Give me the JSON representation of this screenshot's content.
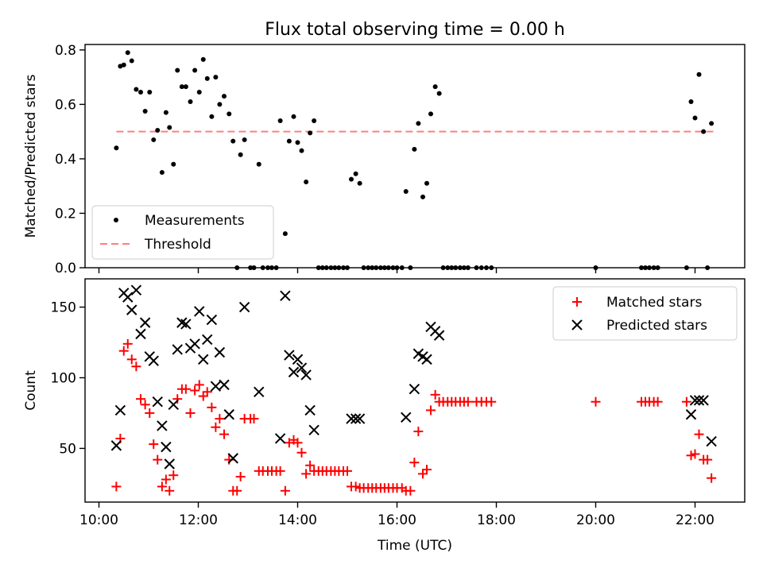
{
  "figure": {
    "title": "Flux total observing time = 0.00 h"
  },
  "colors": {
    "measurements": "#000000",
    "threshold": "#ff7f7f",
    "matched": "#ff0000",
    "predicted": "#000000"
  },
  "chart_data": [
    {
      "type": "scatter",
      "panel": "top",
      "ylabel": "Matched/Predicted stars",
      "xlabel": "",
      "x_unit": "hours UTC",
      "xlim": [
        9.72,
        23.0
      ],
      "ylim": [
        0.0,
        0.82
      ],
      "yticks": [
        0.0,
        0.2,
        0.4,
        0.6,
        0.8
      ],
      "ytick_labels": [
        "0.0",
        "0.2",
        "0.4",
        "0.6",
        "0.8"
      ],
      "legend": {
        "placement": "lower-left",
        "entries": [
          "Measurements",
          "Threshold"
        ]
      },
      "threshold": {
        "name": "Threshold",
        "y": 0.5,
        "x_range": [
          10.35,
          22.38
        ]
      },
      "series": [
        {
          "name": "Measurements",
          "points": [
            [
              10.35,
              0.44
            ],
            [
              10.43,
              0.74
            ],
            [
              10.5,
              0.745
            ],
            [
              10.58,
              0.79
            ],
            [
              10.66,
              0.76
            ],
            [
              10.75,
              0.655
            ],
            [
              10.84,
              0.645
            ],
            [
              10.93,
              0.575
            ],
            [
              11.02,
              0.645
            ],
            [
              11.1,
              0.47
            ],
            [
              11.18,
              0.505
            ],
            [
              11.27,
              0.35
            ],
            [
              11.35,
              0.57
            ],
            [
              11.42,
              0.515
            ],
            [
              11.5,
              0.38
            ],
            [
              11.58,
              0.725
            ],
            [
              11.67,
              0.665
            ],
            [
              11.75,
              0.665
            ],
            [
              11.84,
              0.61
            ],
            [
              11.93,
              0.725
            ],
            [
              12.02,
              0.645
            ],
            [
              12.1,
              0.765
            ],
            [
              12.18,
              0.695
            ],
            [
              12.27,
              0.555
            ],
            [
              12.35,
              0.7
            ],
            [
              12.43,
              0.6
            ],
            [
              12.52,
              0.63
            ],
            [
              12.62,
              0.565
            ],
            [
              12.7,
              0.465
            ],
            [
              12.78,
              0.0
            ],
            [
              12.85,
              0.415
            ],
            [
              12.93,
              0.47
            ],
            [
              13.05,
              0.0
            ],
            [
              13.12,
              0.0
            ],
            [
              13.22,
              0.38
            ],
            [
              13.3,
              0.0
            ],
            [
              13.4,
              0.0
            ],
            [
              13.48,
              0.0
            ],
            [
              13.57,
              0.0
            ],
            [
              13.65,
              0.54
            ],
            [
              13.75,
              0.125
            ],
            [
              13.83,
              0.465
            ],
            [
              13.92,
              0.555
            ],
            [
              14.0,
              0.46
            ],
            [
              14.08,
              0.43
            ],
            [
              14.17,
              0.315
            ],
            [
              14.25,
              0.495
            ],
            [
              14.33,
              0.54
            ],
            [
              14.42,
              0.0
            ],
            [
              14.5,
              0.0
            ],
            [
              14.58,
              0.0
            ],
            [
              14.67,
              0.0
            ],
            [
              14.75,
              0.0
            ],
            [
              14.83,
              0.0
            ],
            [
              14.92,
              0.0
            ],
            [
              15.0,
              0.0
            ],
            [
              15.08,
              0.325
            ],
            [
              15.17,
              0.345
            ],
            [
              15.25,
              0.31
            ],
            [
              15.33,
              0.0
            ],
            [
              15.42,
              0.0
            ],
            [
              15.5,
              0.0
            ],
            [
              15.58,
              0.0
            ],
            [
              15.67,
              0.0
            ],
            [
              15.75,
              0.0
            ],
            [
              15.83,
              0.0
            ],
            [
              15.92,
              0.0
            ],
            [
              16.0,
              0.0
            ],
            [
              16.1,
              0.0
            ],
            [
              16.18,
              0.28
            ],
            [
              16.27,
              0.0
            ],
            [
              16.35,
              0.435
            ],
            [
              16.43,
              0.53
            ],
            [
              16.52,
              0.26
            ],
            [
              16.6,
              0.31
            ],
            [
              16.68,
              0.565
            ],
            [
              16.77,
              0.665
            ],
            [
              16.85,
              0.64
            ],
            [
              16.93,
              0.0
            ],
            [
              17.02,
              0.0
            ],
            [
              17.1,
              0.0
            ],
            [
              17.18,
              0.0
            ],
            [
              17.27,
              0.0
            ],
            [
              17.35,
              0.0
            ],
            [
              17.43,
              0.0
            ],
            [
              17.6,
              0.0
            ],
            [
              17.7,
              0.0
            ],
            [
              17.8,
              0.0
            ],
            [
              17.9,
              0.0
            ],
            [
              20.0,
              0.0
            ],
            [
              20.92,
              0.0
            ],
            [
              21.0,
              0.0
            ],
            [
              21.08,
              0.0
            ],
            [
              21.17,
              0.0
            ],
            [
              21.25,
              0.0
            ],
            [
              21.83,
              0.0
            ],
            [
              21.92,
              0.61
            ],
            [
              22.0,
              0.55
            ],
            [
              22.08,
              0.71
            ],
            [
              22.17,
              0.5
            ],
            [
              22.25,
              0.0
            ],
            [
              22.33,
              0.53
            ]
          ]
        }
      ]
    },
    {
      "type": "scatter",
      "panel": "bottom",
      "ylabel": "Count",
      "xlabel": "Time (UTC)",
      "x_unit": "hours UTC",
      "xlim": [
        9.72,
        23.0
      ],
      "ylim": [
        12,
        170
      ],
      "xticks": [
        10,
        12,
        14,
        16,
        18,
        20,
        22
      ],
      "xtick_labels": [
        "10:00",
        "12:00",
        "14:00",
        "16:00",
        "18:00",
        "20:00",
        "22:00"
      ],
      "yticks": [
        50,
        100,
        150
      ],
      "ytick_labels": [
        "50",
        "100",
        "150"
      ],
      "legend": {
        "placement": "top-right",
        "entries": [
          "Matched stars",
          "Predicted stars"
        ]
      },
      "series": [
        {
          "name": "Matched stars",
          "marker": "+",
          "points": [
            [
              10.35,
              23
            ],
            [
              10.43,
              57
            ],
            [
              10.5,
              119
            ],
            [
              10.58,
              124
            ],
            [
              10.66,
              113
            ],
            [
              10.75,
              108
            ],
            [
              10.84,
              85
            ],
            [
              10.93,
              81
            ],
            [
              11.02,
              75
            ],
            [
              11.1,
              53
            ],
            [
              11.18,
              42
            ],
            [
              11.27,
              23
            ],
            [
              11.35,
              28
            ],
            [
              11.42,
              20
            ],
            [
              11.5,
              31
            ],
            [
              11.58,
              85
            ],
            [
              11.67,
              92
            ],
            [
              11.75,
              92
            ],
            [
              11.84,
              75
            ],
            [
              11.93,
              91
            ],
            [
              12.02,
              95
            ],
            [
              12.1,
              87
            ],
            [
              12.18,
              90
            ],
            [
              12.27,
              79
            ],
            [
              12.35,
              65
            ],
            [
              12.43,
              71
            ],
            [
              12.52,
              60
            ],
            [
              12.62,
              42
            ],
            [
              12.7,
              20
            ],
            [
              12.78,
              20
            ],
            [
              12.85,
              30
            ],
            [
              12.93,
              71
            ],
            [
              13.05,
              71
            ],
            [
              13.12,
              71
            ],
            [
              13.22,
              34
            ],
            [
              13.3,
              34
            ],
            [
              13.4,
              34
            ],
            [
              13.48,
              34
            ],
            [
              13.57,
              34
            ],
            [
              13.65,
              34
            ],
            [
              13.75,
              20
            ],
            [
              13.83,
              54
            ],
            [
              13.92,
              56
            ],
            [
              14.0,
              54
            ],
            [
              14.08,
              47
            ],
            [
              14.17,
              32
            ],
            [
              14.25,
              38
            ],
            [
              14.33,
              34
            ],
            [
              14.42,
              34
            ],
            [
              14.5,
              34
            ],
            [
              14.58,
              34
            ],
            [
              14.67,
              34
            ],
            [
              14.75,
              34
            ],
            [
              14.83,
              34
            ],
            [
              14.92,
              34
            ],
            [
              15.0,
              34
            ],
            [
              15.08,
              23
            ],
            [
              15.17,
              23
            ],
            [
              15.25,
              22
            ],
            [
              15.33,
              22
            ],
            [
              15.42,
              22
            ],
            [
              15.5,
              22
            ],
            [
              15.58,
              22
            ],
            [
              15.67,
              22
            ],
            [
              15.75,
              22
            ],
            [
              15.83,
              22
            ],
            [
              15.92,
              22
            ],
            [
              16.0,
              22
            ],
            [
              16.1,
              22
            ],
            [
              16.18,
              20
            ],
            [
              16.27,
              20
            ],
            [
              16.35,
              40
            ],
            [
              16.43,
              62
            ],
            [
              16.52,
              32
            ],
            [
              16.6,
              35
            ],
            [
              16.68,
              77
            ],
            [
              16.77,
              88
            ],
            [
              16.85,
              83
            ],
            [
              16.93,
              83
            ],
            [
              17.02,
              83
            ],
            [
              17.1,
              83
            ],
            [
              17.18,
              83
            ],
            [
              17.27,
              83
            ],
            [
              17.35,
              83
            ],
            [
              17.43,
              83
            ],
            [
              17.6,
              83
            ],
            [
              17.7,
              83
            ],
            [
              17.8,
              83
            ],
            [
              17.9,
              83
            ],
            [
              20.0,
              83
            ],
            [
              20.92,
              83
            ],
            [
              21.0,
              83
            ],
            [
              21.08,
              83
            ],
            [
              21.17,
              83
            ],
            [
              21.25,
              83
            ],
            [
              21.83,
              83
            ],
            [
              21.92,
              45
            ],
            [
              22.0,
              46
            ],
            [
              22.08,
              60
            ],
            [
              22.17,
              42
            ],
            [
              22.25,
              42
            ],
            [
              22.33,
              29
            ]
          ]
        },
        {
          "name": "Predicted stars",
          "marker": "x",
          "points": [
            [
              10.35,
              52
            ],
            [
              10.43,
              77
            ],
            [
              10.5,
              160
            ],
            [
              10.58,
              157
            ],
            [
              10.66,
              148
            ],
            [
              10.75,
              162
            ],
            [
              10.84,
              131
            ],
            [
              10.93,
              139
            ],
            [
              11.02,
              115
            ],
            [
              11.1,
              112
            ],
            [
              11.18,
              83
            ],
            [
              11.27,
              66
            ],
            [
              11.35,
              51
            ],
            [
              11.42,
              39
            ],
            [
              11.5,
              81
            ],
            [
              11.58,
              120
            ],
            [
              11.67,
              139
            ],
            [
              11.75,
              138
            ],
            [
              11.84,
              121
            ],
            [
              11.93,
              124
            ],
            [
              12.02,
              147
            ],
            [
              12.1,
              113
            ],
            [
              12.18,
              127
            ],
            [
              12.27,
              141
            ],
            [
              12.35,
              94
            ],
            [
              12.43,
              118
            ],
            [
              12.52,
              95
            ],
            [
              12.62,
              74
            ],
            [
              12.7,
              43
            ],
            [
              12.93,
              150
            ],
            [
              13.22,
              90
            ],
            [
              13.65,
              57
            ],
            [
              13.75,
              158
            ],
            [
              13.83,
              116
            ],
            [
              13.92,
              104
            ],
            [
              14.0,
              113
            ],
            [
              14.08,
              107
            ],
            [
              14.17,
              102
            ],
            [
              14.25,
              77
            ],
            [
              14.33,
              63
            ],
            [
              15.08,
              71
            ],
            [
              15.17,
              71
            ],
            [
              15.25,
              71
            ],
            [
              16.18,
              72
            ],
            [
              16.35,
              92
            ],
            [
              16.43,
              117
            ],
            [
              16.52,
              115
            ],
            [
              16.6,
              113
            ],
            [
              16.68,
              136
            ],
            [
              16.77,
              133
            ],
            [
              16.85,
              130
            ],
            [
              21.92,
              74
            ],
            [
              22.0,
              84
            ],
            [
              22.08,
              84
            ],
            [
              22.17,
              84
            ],
            [
              22.33,
              55
            ]
          ]
        }
      ]
    }
  ]
}
